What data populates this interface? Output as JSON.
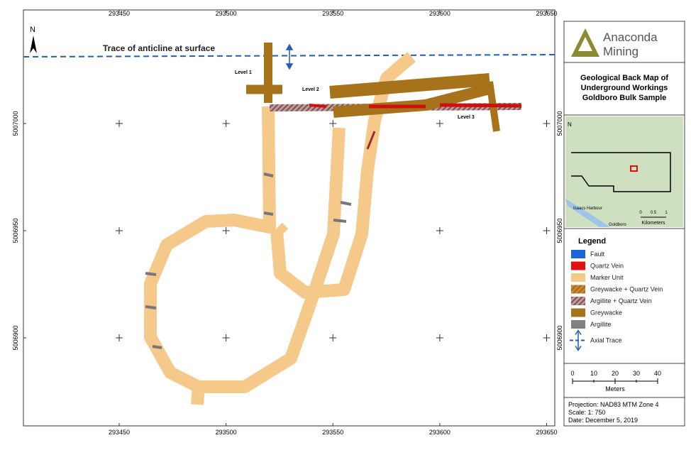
{
  "map": {
    "grid": {
      "eastings": [
        293450,
        293500,
        293550,
        293600,
        293650
      ],
      "northings": [
        5007000,
        5006950,
        5006900
      ]
    },
    "north": "N",
    "anticline_label": "Trace of anticline at surface",
    "levels": [
      "Level 1",
      "Level 2",
      "Level 3"
    ]
  },
  "panel": {
    "logo": [
      "Anaconda",
      "Mining"
    ],
    "title": [
      "Geological Back Map of",
      "Underground Workings",
      "Goldboro Bulk Sample"
    ],
    "inset": {
      "north": "N",
      "places": [
        "Isaacs Harbour",
        "Goldboro"
      ],
      "scale_ticks": [
        "0",
        "0.5",
        "1"
      ],
      "scale_unit": "Kilometers"
    },
    "legend": {
      "title": "Legend",
      "items": [
        "Fault",
        "Quartz Vein",
        "Marker Unit",
        "Greywacke + Quartz Vein",
        "Argillite + Quartz Vein",
        "Greywacke",
        "Argillite",
        "Axial Trace"
      ]
    },
    "scale": {
      "ticks": [
        "0",
        "10",
        "20",
        "30",
        "40"
      ],
      "unit": "Meters"
    },
    "notes": [
      "Projection: NAD83 MTM Zone 4",
      "Scale: 1: 750",
      "Date: December 5, 2019"
    ]
  }
}
